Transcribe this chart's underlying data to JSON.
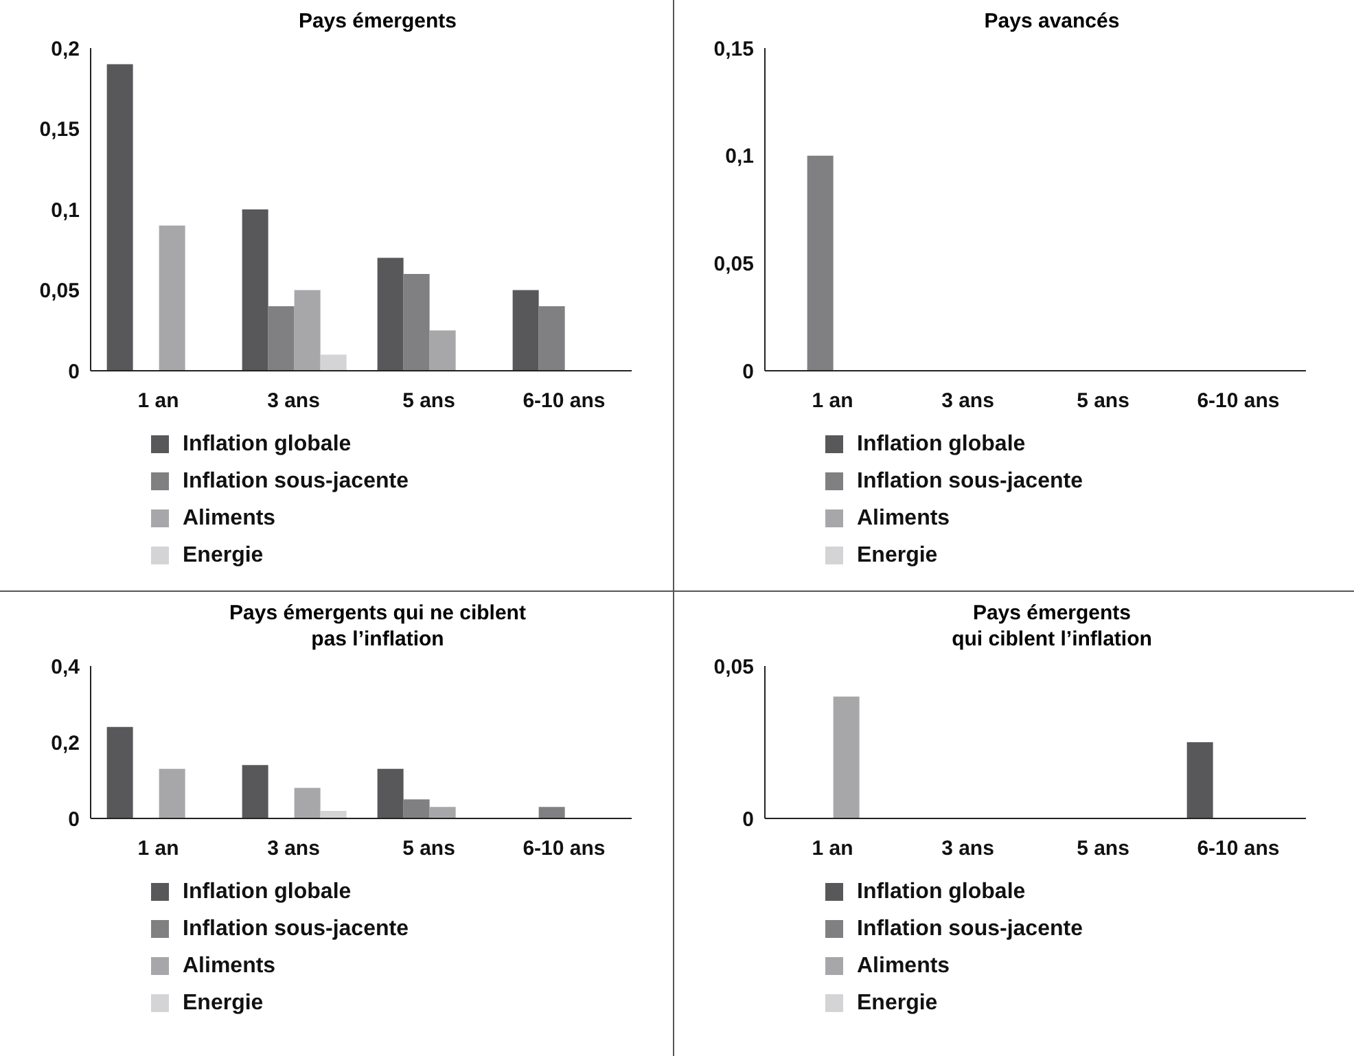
{
  "chart_data": [
    {
      "type": "bar",
      "title": "Pays émergents",
      "categories": [
        "1 an",
        "3 ans",
        "5 ans",
        "6-10 ans"
      ],
      "series": [
        {
          "name": "Inflation globale",
          "color": "#58585a",
          "values": [
            0.19,
            0.1,
            0.07,
            0.05
          ]
        },
        {
          "name": "Inflation sous-jacente",
          "color": "#808083",
          "values": [
            0,
            0.04,
            0.06,
            0.04
          ]
        },
        {
          "name": "Aliments",
          "color": "#a7a7a9",
          "values": [
            0.09,
            0.05,
            0.025,
            0
          ]
        },
        {
          "name": "Energie",
          "color": "#d4d4d6",
          "values": [
            0,
            0.01,
            0,
            0
          ]
        }
      ],
      "ylim": [
        0,
        0.2
      ],
      "yticks": [
        {
          "value": 0,
          "label": "0"
        },
        {
          "value": 0.05,
          "label": "0,05"
        },
        {
          "value": 0.1,
          "label": "0,1"
        },
        {
          "value": 0.15,
          "label": "0,15"
        },
        {
          "value": 0.2,
          "label": "0,2"
        }
      ],
      "grid": false,
      "legend": "bottom"
    },
    {
      "type": "bar",
      "title": "Pays avancés",
      "categories": [
        "1 an",
        "3 ans",
        "5 ans",
        "6-10 ans"
      ],
      "series": [
        {
          "name": "Inflation globale",
          "color": "#58585a",
          "values": [
            0,
            0,
            0,
            0
          ]
        },
        {
          "name": "Inflation sous-jacente",
          "color": "#808083",
          "values": [
            0.1,
            0,
            0,
            0
          ]
        },
        {
          "name": "Aliments",
          "color": "#a7a7a9",
          "values": [
            0,
            0,
            0,
            0
          ]
        },
        {
          "name": "Energie",
          "color": "#d4d4d6",
          "values": [
            0,
            0,
            0,
            0
          ]
        }
      ],
      "ylim": [
        0,
        0.15
      ],
      "yticks": [
        {
          "value": 0,
          "label": "0"
        },
        {
          "value": 0.05,
          "label": "0,05"
        },
        {
          "value": 0.1,
          "label": "0,1"
        },
        {
          "value": 0.15,
          "label": "0,15"
        }
      ],
      "grid": false,
      "legend": "bottom"
    },
    {
      "type": "bar",
      "title": "Pays émergents qui ne ciblent\npas l’inflation",
      "categories": [
        "1 an",
        "3 ans",
        "5 ans",
        "6-10 ans"
      ],
      "series": [
        {
          "name": "Inflation globale",
          "color": "#58585a",
          "values": [
            0.24,
            0.14,
            0.13,
            0
          ]
        },
        {
          "name": "Inflation sous-jacente",
          "color": "#808083",
          "values": [
            0,
            0,
            0.05,
            0.03
          ]
        },
        {
          "name": "Aliments",
          "color": "#a7a7a9",
          "values": [
            0.13,
            0.08,
            0.03,
            0
          ]
        },
        {
          "name": "Energie",
          "color": "#d4d4d6",
          "values": [
            0,
            0.02,
            0,
            0
          ]
        }
      ],
      "ylim": [
        0,
        0.4
      ],
      "yticks": [
        {
          "value": 0,
          "label": "0"
        },
        {
          "value": 0.2,
          "label": "0,2"
        },
        {
          "value": 0.4,
          "label": "0,4"
        }
      ],
      "grid": false,
      "legend": "bottom"
    },
    {
      "type": "bar",
      "title": "Pays émergents\nqui ciblent l’inflation",
      "categories": [
        "1 an",
        "3 ans",
        "5 ans",
        "6-10 ans"
      ],
      "series": [
        {
          "name": "Inflation globale",
          "color": "#58585a",
          "values": [
            0,
            0,
            0,
            0.025
          ]
        },
        {
          "name": "Inflation sous-jacente",
          "color": "#808083",
          "values": [
            0,
            0,
            0,
            0
          ]
        },
        {
          "name": "Aliments",
          "color": "#a7a7a9",
          "values": [
            0.04,
            0,
            0,
            0
          ]
        },
        {
          "name": "Energie",
          "color": "#d4d4d6",
          "values": [
            0,
            0,
            0,
            0
          ]
        }
      ],
      "ylim": [
        0,
        0.05
      ],
      "yticks": [
        {
          "value": 0,
          "label": "0"
        },
        {
          "value": 0.05,
          "label": "0,05"
        }
      ],
      "grid": false,
      "legend": "bottom"
    }
  ]
}
